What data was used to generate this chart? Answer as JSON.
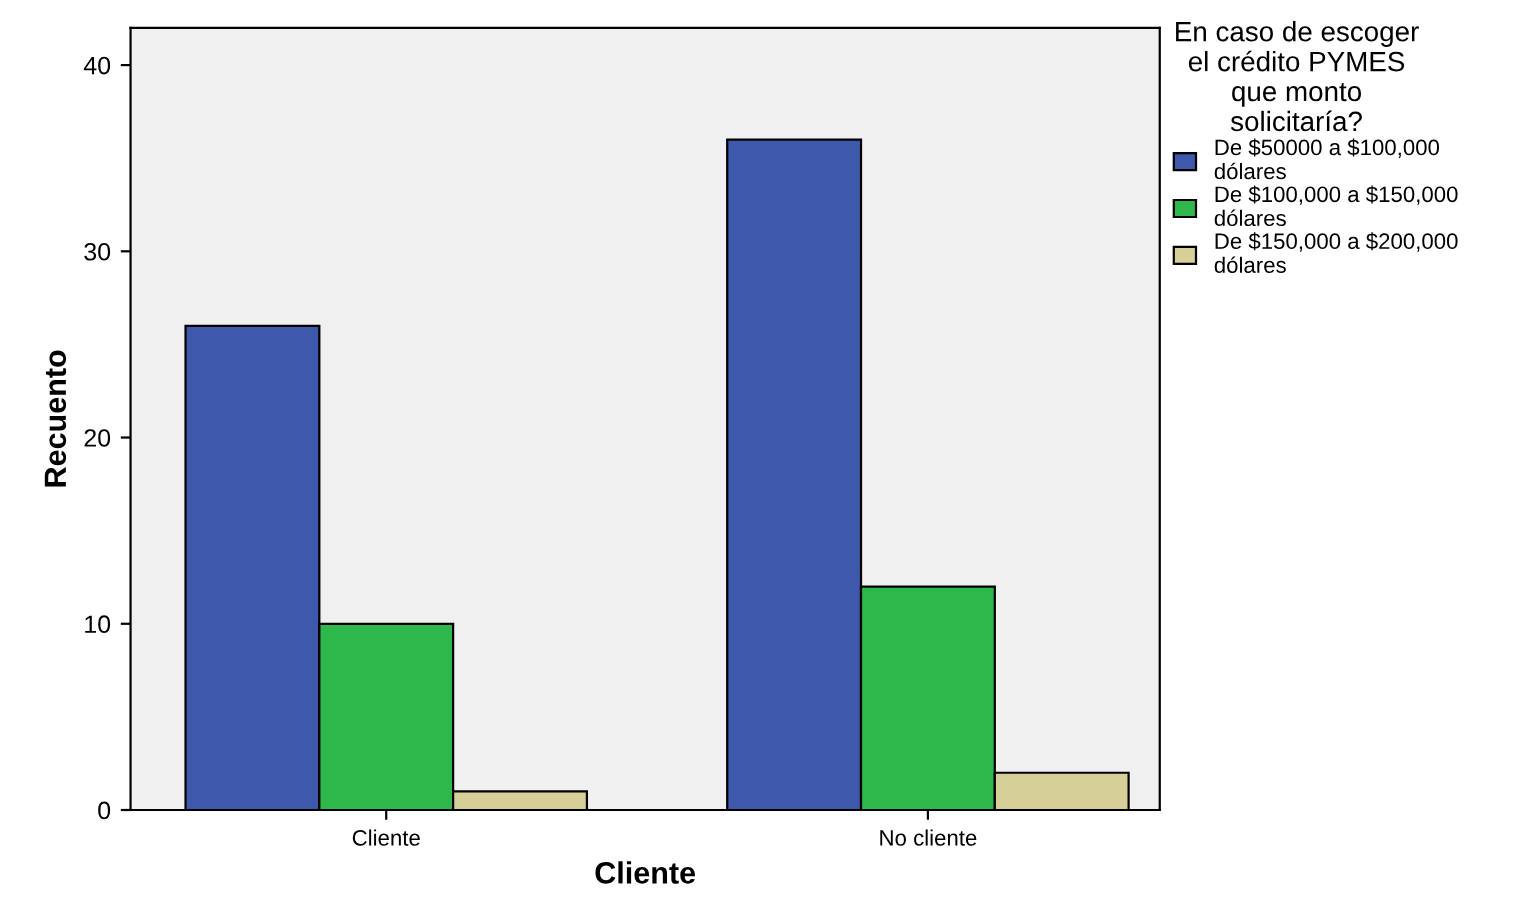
{
  "chart_data": {
    "type": "bar",
    "xlabel": "Cliente",
    "ylabel": "Recuento",
    "legend_title": "En caso de escoger\nel crédito PYMES\nque monto\nsolicitaría?",
    "categories": [
      "Cliente",
      "No cliente"
    ],
    "series": [
      {
        "name": "De $50000 a $100,000\ndólares",
        "color": "#3e58ac",
        "values": [
          26,
          36
        ]
      },
      {
        "name": "De $100,000 a $150,000\ndólares",
        "color": "#2eb84b",
        "values": [
          10,
          12
        ]
      },
      {
        "name": "De $150,000 a $200,000\ndólares",
        "color": "#d6cf97",
        "values": [
          1,
          2
        ]
      }
    ],
    "ylim": [
      0,
      42
    ],
    "yticks": [
      0,
      10,
      20,
      30,
      40
    ],
    "grid": false,
    "legend": "right"
  }
}
